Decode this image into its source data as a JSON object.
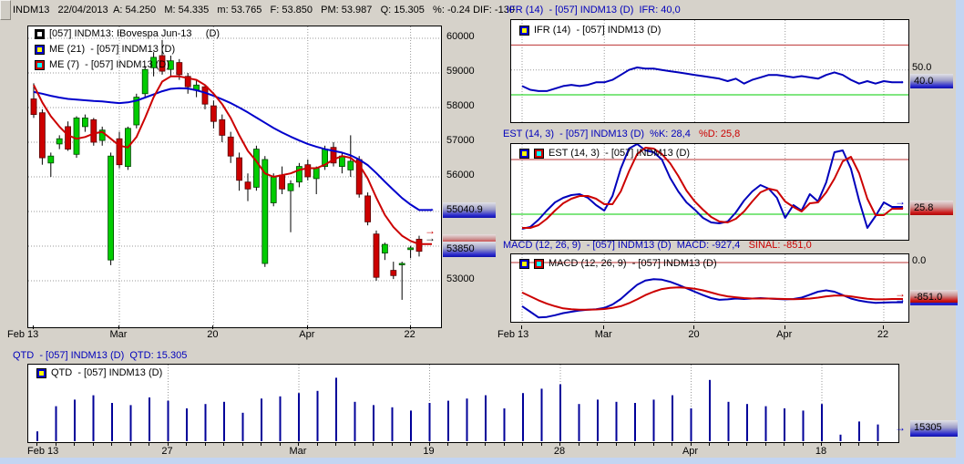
{
  "window": {
    "bg_color": "#d6d2ca",
    "scrollbar_color": "#c3d5f2"
  },
  "icons": {
    "arrow_right": "→"
  },
  "main_chart": {
    "header": "INDM13   22/04/2013  A: 54.250   M: 54.335   m: 53.765   F: 53.850   PM: 53.987   Q: 15.305   %: -0.24 DIF: -130",
    "legend": [
      "[057] INDM13: IBovespa Jun-13     (D)",
      "ME (21)  - [057] INDM13 (D)",
      "ME (7)  - [057] INDM13 (D)"
    ],
    "badges": {
      "ma21": "55040.9",
      "last": "53850"
    }
  },
  "ifr": {
    "header": "IFR (14)  - [057] INDM13 (D)  IFR: 40,0",
    "legend": "IFR (14)  - [057] INDM13 (D)",
    "level_50": "50.0",
    "badge": "40.0"
  },
  "est": {
    "header_main": "EST (14, 3)  - [057] INDM13 (D)  %K: 28,4",
    "header_d": "   %D: 25,8",
    "legend": "EST (14, 3)  - [057] INDM13 (D)",
    "badge": "25.8"
  },
  "macd": {
    "header_main": "MACD (12, 26, 9)  - [057] INDM13 (D)  MACD: -927,4",
    "header_sinal": "   SINAL: -851,0",
    "legend": "MACD (12, 26, 9)  - [057] INDM13 (D)",
    "level_0": "0.0",
    "badge": "-851.0"
  },
  "qtd": {
    "header": "QTD  - [057] INDM13 (D)  QTD: 15.305",
    "legend": "QTD  - [057] INDM13 (D)",
    "badge": "15305"
  },
  "chart_data": [
    {
      "id": "price",
      "type": "candlestick",
      "title": "[057] INDM13: IBovespa Jun-13 (D)",
      "ylim": [
        52400,
        60300
      ],
      "y_ticks_visible": [
        {
          "label": "60000",
          "v": 60000
        },
        {
          "label": "59000",
          "v": 59000
        },
        {
          "label": "58000",
          "v": 58000
        },
        {
          "label": "57000",
          "v": 57000
        },
        {
          "label": "56000",
          "v": 56000
        },
        {
          "label": "53000",
          "v": 53000
        }
      ],
      "grid_levels": [
        60000,
        59000,
        58000,
        57000,
        56000,
        55000,
        54000,
        53000
      ],
      "x_labels": [
        {
          "label": "Feb 13",
          "i": 0
        },
        {
          "label": "Mar",
          "i": 10
        },
        {
          "label": "20",
          "i": 21
        },
        {
          "label": "Apr",
          "i": 32
        },
        {
          "label": "22",
          "i": 44
        }
      ],
      "candles": [
        [
          58250,
          58700,
          57700,
          57800
        ],
        [
          57850,
          57950,
          56350,
          56550
        ],
        [
          56400,
          56700,
          56000,
          56600
        ],
        [
          56950,
          57200,
          56800,
          57100
        ],
        [
          57450,
          57600,
          56750,
          56800
        ],
        [
          56650,
          57750,
          56550,
          57700
        ],
        [
          57450,
          57800,
          57300,
          57700
        ],
        [
          57650,
          57700,
          56900,
          57000
        ],
        [
          57050,
          57450,
          56900,
          57350
        ],
        [
          53600,
          56700,
          53450,
          56600
        ],
        [
          57100,
          57300,
          56250,
          56350
        ],
        [
          56300,
          57450,
          56200,
          57400
        ],
        [
          57500,
          58400,
          57400,
          58300
        ],
        [
          58400,
          59200,
          58300,
          59100
        ],
        [
          59150,
          59600,
          58900,
          59450
        ],
        [
          59500,
          59950,
          58950,
          59050
        ],
        [
          59100,
          59500,
          58900,
          59350
        ],
        [
          59300,
          59400,
          58800,
          58950
        ],
        [
          58900,
          59000,
          58400,
          58600
        ],
        [
          58500,
          58800,
          58300,
          58650
        ],
        [
          58600,
          58650,
          57950,
          58100
        ],
        [
          58050,
          58200,
          57400,
          57600
        ],
        [
          57650,
          57800,
          57000,
          57200
        ],
        [
          57150,
          57300,
          56400,
          56600
        ],
        [
          56550,
          56700,
          55600,
          55900
        ],
        [
          55850,
          56100,
          55300,
          55650
        ],
        [
          55700,
          56900,
          55600,
          56800
        ],
        [
          53500,
          56600,
          53400,
          56500
        ],
        [
          55250,
          56100,
          55150,
          56000
        ],
        [
          56050,
          56300,
          55500,
          55650
        ],
        [
          55600,
          55900,
          54400,
          55800
        ],
        [
          55850,
          56400,
          55700,
          56300
        ],
        [
          56350,
          56500,
          55900,
          56000
        ],
        [
          55950,
          56300,
          55500,
          56250
        ],
        [
          56300,
          56900,
          56200,
          56800
        ],
        [
          56850,
          57000,
          56300,
          56400
        ],
        [
          56300,
          56700,
          56100,
          56600
        ],
        [
          56200,
          57200,
          56000,
          56450
        ],
        [
          56500,
          56600,
          55400,
          55500
        ],
        [
          55450,
          55550,
          54600,
          54700
        ],
        [
          54350,
          54450,
          53000,
          53100
        ],
        [
          53800,
          54100,
          53600,
          54050
        ],
        [
          53300,
          53550,
          53050,
          53150
        ],
        [
          53500,
          53550,
          52450,
          53500
        ],
        [
          53900,
          54000,
          53650,
          53950
        ],
        [
          54200,
          54300,
          53700,
          53850
        ]
      ],
      "series": [
        {
          "name": "ME (21)",
          "color": "#0000cc",
          "last": 55040.9,
          "values": [
            58450,
            58400,
            58340,
            58290,
            58250,
            58230,
            58210,
            58190,
            58180,
            58150,
            58130,
            58150,
            58200,
            58290,
            58380,
            58470,
            58540,
            58560,
            58550,
            58500,
            58430,
            58340,
            58240,
            58130,
            58000,
            57860,
            57710,
            57560,
            57410,
            57280,
            57160,
            57050,
            56950,
            56870,
            56800,
            56750,
            56700,
            56620,
            56500,
            56340,
            56110,
            55860,
            55620,
            55390,
            55200,
            55041
          ]
        },
        {
          "name": "ME (7)",
          "color": "#cc0000",
          "values": [
            58650,
            58150,
            57750,
            57450,
            57200,
            57100,
            57150,
            57250,
            57300,
            57100,
            56900,
            56850,
            57150,
            57700,
            58300,
            58750,
            58900,
            58900,
            58850,
            58800,
            58650,
            58400,
            58100,
            57700,
            57200,
            56750,
            56450,
            56100,
            56000,
            56050,
            56100,
            56200,
            56250,
            56250,
            56350,
            56500,
            56600,
            56550,
            56350,
            55950,
            55400,
            54900,
            54550,
            54300,
            54150,
            54057
          ]
        }
      ],
      "last_price": 53850
    },
    {
      "id": "ifr",
      "type": "line",
      "title": "IFR (14) - [057] INDM13 (D)",
      "ylim": [
        0,
        100
      ],
      "levels": {
        "overbought": 70,
        "mid": 50,
        "oversold": 30
      },
      "last": 40.0,
      "values": [
        37,
        34,
        33,
        33,
        35,
        37,
        38,
        37,
        38,
        40,
        40,
        42,
        46,
        50,
        52,
        51,
        51,
        50,
        49,
        48,
        47,
        46,
        45,
        44,
        43,
        41,
        43,
        39,
        42,
        44,
        46,
        46,
        45,
        44,
        45,
        44,
        43,
        46,
        48,
        46,
        42,
        39,
        41,
        39,
        41,
        40
      ]
    },
    {
      "id": "est",
      "type": "line",
      "title": "EST (14, 3) - [057] INDM13 (D)",
      "ylim": [
        0,
        100
      ],
      "levels": {
        "upper": 80,
        "lower": 20
      },
      "series": [
        {
          "name": "%K",
          "color": "#0000bb",
          "last": 28.4,
          "values": [
            4,
            6,
            14,
            24,
            33,
            38,
            41,
            42,
            38,
            30,
            24,
            40,
            70,
            92,
            97,
            90,
            88,
            80,
            60,
            45,
            33,
            25,
            16,
            11,
            10,
            12,
            22,
            35,
            45,
            52,
            48,
            38,
            16,
            30,
            24,
            42,
            34,
            55,
            88,
            90,
            70,
            35,
            5,
            18,
            33,
            28
          ]
        },
        {
          "name": "%D",
          "color": "#cc0000",
          "last": 25.8,
          "values": [
            5,
            5,
            8,
            15,
            24,
            32,
            37,
            40,
            40,
            37,
            31,
            31,
            45,
            67,
            86,
            93,
            92,
            86,
            76,
            62,
            46,
            34,
            25,
            17,
            12,
            11,
            15,
            23,
            34,
            44,
            48,
            46,
            34,
            28,
            23,
            32,
            33,
            44,
            59,
            78,
            83,
            65,
            37,
            19,
            19,
            26
          ]
        }
      ]
    },
    {
      "id": "macd",
      "type": "line",
      "title": "MACD (12, 26, 9) - [057] INDM13 (D)",
      "levels": {
        "zero": 0
      },
      "series": [
        {
          "name": "MACD",
          "color": "#0000bb",
          "last": -927.4,
          "values": [
            -1020,
            -1150,
            -1280,
            -1270,
            -1230,
            -1180,
            -1150,
            -1120,
            -1100,
            -1090,
            -1060,
            -980,
            -850,
            -680,
            -520,
            -420,
            -390,
            -400,
            -450,
            -520,
            -600,
            -680,
            -760,
            -830,
            -870,
            -860,
            -840,
            -850,
            -840,
            -830,
            -840,
            -850,
            -860,
            -850,
            -820,
            -750,
            -680,
            -650,
            -680,
            -760,
            -840,
            -890,
            -920,
            -940,
            -935,
            -927
          ]
        },
        {
          "name": "SINAL",
          "color": "#cc0000",
          "last": -851.0,
          "values": [
            -700,
            -790,
            -880,
            -960,
            -1020,
            -1070,
            -1090,
            -1100,
            -1100,
            -1095,
            -1085,
            -1060,
            -1020,
            -950,
            -860,
            -760,
            -680,
            -620,
            -590,
            -580,
            -590,
            -610,
            -650,
            -700,
            -750,
            -790,
            -810,
            -830,
            -840,
            -840,
            -840,
            -845,
            -850,
            -855,
            -850,
            -840,
            -820,
            -790,
            -770,
            -770,
            -790,
            -820,
            -845,
            -860,
            -860,
            -851
          ]
        }
      ]
    },
    {
      "id": "qtd",
      "type": "bar",
      "title": "QTD - [057] INDM13 (D)",
      "last": 15305,
      "x_labels": [
        {
          "label": "Feb 13",
          "i": 0
        },
        {
          "label": "27",
          "i": 7
        },
        {
          "label": "Mar",
          "i": 14
        },
        {
          "label": "19",
          "i": 21
        },
        {
          "label": "28",
          "i": 28
        },
        {
          "label": "Apr",
          "i": 35
        },
        {
          "label": "18",
          "i": 42
        }
      ],
      "values": [
        9000,
        32000,
        38000,
        42000,
        35000,
        33000,
        40000,
        37000,
        30000,
        34000,
        36000,
        26000,
        39000,
        41000,
        44000,
        46000,
        58000,
        36000,
        33000,
        31000,
        28000,
        35000,
        37000,
        39000,
        42000,
        30000,
        44000,
        48000,
        52000,
        34000,
        38000,
        36000,
        35000,
        38000,
        42000,
        30000,
        56000,
        36000,
        34000,
        32000,
        30000,
        28000,
        34000,
        6000,
        18000,
        15305
      ]
    }
  ]
}
